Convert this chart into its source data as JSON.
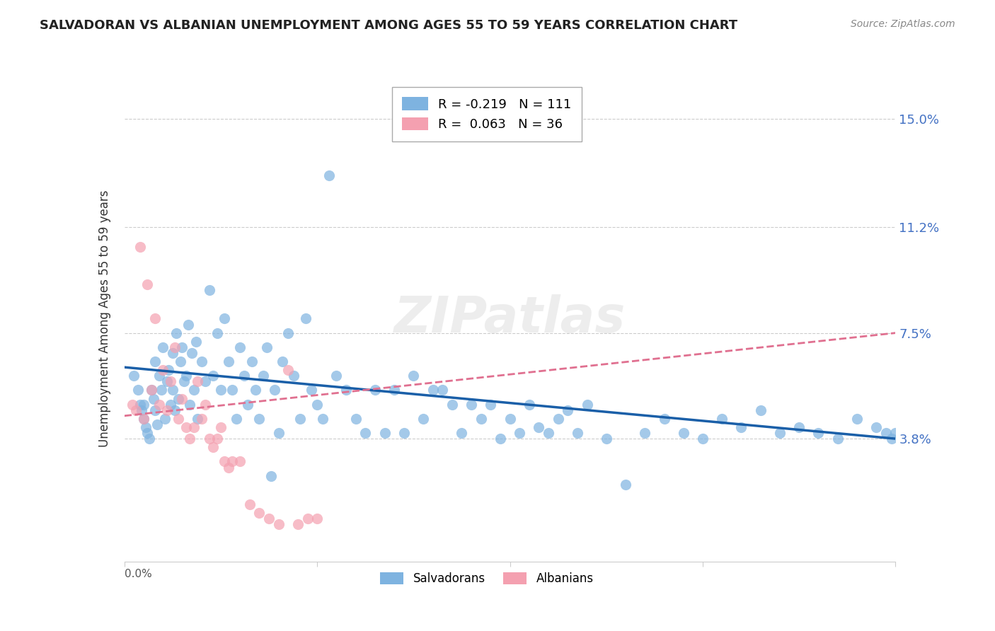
{
  "title": "SALVADORAN VS ALBANIAN UNEMPLOYMENT AMONG AGES 55 TO 59 YEARS CORRELATION CHART",
  "source": "Source: ZipAtlas.com",
  "ylabel": "Unemployment Among Ages 55 to 59 years",
  "ytick_labels": [
    "15.0%",
    "11.2%",
    "7.5%",
    "3.8%"
  ],
  "ytick_values": [
    0.15,
    0.112,
    0.075,
    0.038
  ],
  "xlim": [
    0.0,
    0.4
  ],
  "ylim": [
    -0.005,
    0.165
  ],
  "salvadoran_color": "#7eb3e0",
  "albanian_color": "#f4a0b0",
  "salvadoran_line_color": "#1a5fa8",
  "albanian_line_color": "#e07090",
  "legend_salvadoran": "R = -0.219   N = 111",
  "legend_albanian": "R =  0.063   N = 36",
  "legend_bottom_salvadoran": "Salvadorans",
  "legend_bottom_albanian": "Albanians",
  "watermark": "ZIPatlas",
  "sal_line_x": [
    0.0,
    0.4
  ],
  "sal_line_y": [
    0.063,
    0.038
  ],
  "alb_line_x": [
    0.0,
    0.4
  ],
  "alb_line_y": [
    0.046,
    0.075
  ],
  "salvadoran_x": [
    0.005,
    0.007,
    0.008,
    0.009,
    0.01,
    0.01,
    0.011,
    0.012,
    0.013,
    0.014,
    0.015,
    0.016,
    0.016,
    0.017,
    0.018,
    0.019,
    0.02,
    0.021,
    0.022,
    0.023,
    0.024,
    0.025,
    0.025,
    0.026,
    0.027,
    0.028,
    0.029,
    0.03,
    0.031,
    0.032,
    0.033,
    0.034,
    0.035,
    0.036,
    0.037,
    0.038,
    0.04,
    0.042,
    0.044,
    0.046,
    0.048,
    0.05,
    0.052,
    0.054,
    0.056,
    0.058,
    0.06,
    0.062,
    0.064,
    0.066,
    0.068,
    0.07,
    0.072,
    0.074,
    0.076,
    0.078,
    0.08,
    0.082,
    0.085,
    0.088,
    0.091,
    0.094,
    0.097,
    0.1,
    0.103,
    0.106,
    0.11,
    0.115,
    0.12,
    0.125,
    0.13,
    0.135,
    0.14,
    0.145,
    0.15,
    0.155,
    0.16,
    0.165,
    0.17,
    0.175,
    0.18,
    0.185,
    0.19,
    0.195,
    0.2,
    0.205,
    0.21,
    0.215,
    0.22,
    0.225,
    0.23,
    0.235,
    0.24,
    0.25,
    0.26,
    0.27,
    0.28,
    0.29,
    0.3,
    0.31,
    0.32,
    0.33,
    0.34,
    0.35,
    0.36,
    0.37,
    0.38,
    0.39,
    0.395,
    0.398,
    0.4
  ],
  "salvadoran_y": [
    0.06,
    0.055,
    0.05,
    0.048,
    0.045,
    0.05,
    0.042,
    0.04,
    0.038,
    0.055,
    0.052,
    0.048,
    0.065,
    0.043,
    0.06,
    0.055,
    0.07,
    0.045,
    0.058,
    0.062,
    0.05,
    0.055,
    0.068,
    0.048,
    0.075,
    0.052,
    0.065,
    0.07,
    0.058,
    0.06,
    0.078,
    0.05,
    0.068,
    0.055,
    0.072,
    0.045,
    0.065,
    0.058,
    0.09,
    0.06,
    0.075,
    0.055,
    0.08,
    0.065,
    0.055,
    0.045,
    0.07,
    0.06,
    0.05,
    0.065,
    0.055,
    0.045,
    0.06,
    0.07,
    0.025,
    0.055,
    0.04,
    0.065,
    0.075,
    0.06,
    0.045,
    0.08,
    0.055,
    0.05,
    0.045,
    0.13,
    0.06,
    0.055,
    0.045,
    0.04,
    0.055,
    0.04,
    0.055,
    0.04,
    0.06,
    0.045,
    0.055,
    0.055,
    0.05,
    0.04,
    0.05,
    0.045,
    0.05,
    0.038,
    0.045,
    0.04,
    0.05,
    0.042,
    0.04,
    0.045,
    0.048,
    0.04,
    0.05,
    0.038,
    0.022,
    0.04,
    0.045,
    0.04,
    0.038,
    0.045,
    0.042,
    0.048,
    0.04,
    0.042,
    0.04,
    0.038,
    0.045,
    0.042,
    0.04,
    0.038,
    0.04
  ],
  "albanian_x": [
    0.004,
    0.006,
    0.008,
    0.01,
    0.012,
    0.014,
    0.016,
    0.018,
    0.02,
    0.022,
    0.024,
    0.026,
    0.028,
    0.03,
    0.032,
    0.034,
    0.036,
    0.038,
    0.04,
    0.042,
    0.044,
    0.046,
    0.048,
    0.05,
    0.052,
    0.054,
    0.056,
    0.06,
    0.065,
    0.07,
    0.075,
    0.08,
    0.085,
    0.09,
    0.095,
    0.1
  ],
  "albanian_y": [
    0.05,
    0.048,
    0.105,
    0.045,
    0.092,
    0.055,
    0.08,
    0.05,
    0.062,
    0.048,
    0.058,
    0.07,
    0.045,
    0.052,
    0.042,
    0.038,
    0.042,
    0.058,
    0.045,
    0.05,
    0.038,
    0.035,
    0.038,
    0.042,
    0.03,
    0.028,
    0.03,
    0.03,
    0.015,
    0.012,
    0.01,
    0.008,
    0.062,
    0.008,
    0.01,
    0.01
  ]
}
